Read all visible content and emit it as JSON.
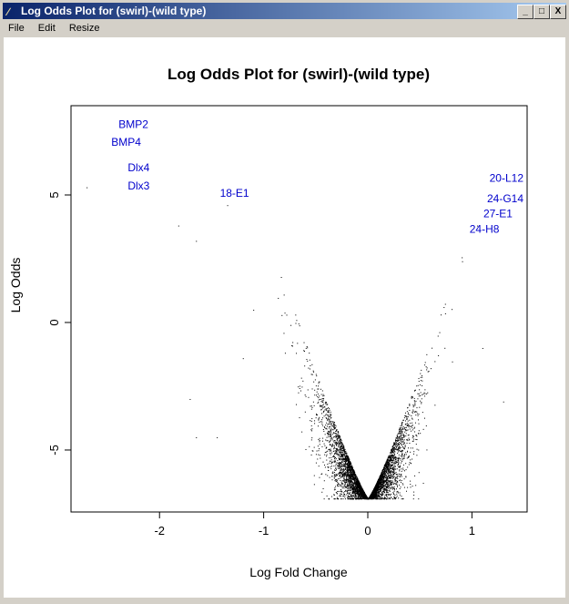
{
  "window": {
    "title": "Log Odds Plot for (swirl)-(wild type)",
    "icon": "feather-icon",
    "controls": [
      "_",
      "□",
      "X"
    ]
  },
  "menu": [
    "File",
    "Edit",
    "Resize"
  ],
  "chart_data": {
    "type": "scatter",
    "title": "Log Odds Plot for (swirl)-(wild type)",
    "xlabel": "Log Fold Change",
    "ylabel": "Log Odds",
    "xlim": [
      -2.85,
      1.53
    ],
    "ylim": [
      -7.43,
      8.5
    ],
    "xticks": [
      -2,
      -1,
      0,
      1
    ],
    "yticks": [
      -5,
      0,
      5
    ],
    "grid": false,
    "point_color": "#000000",
    "label_color": "#0000cc",
    "labeled_points": [
      {
        "label": "BMP2",
        "x": -2.25,
        "y": 7.8
      },
      {
        "label": "BMP4",
        "x": -2.32,
        "y": 7.6
      },
      {
        "label": "Dlx4",
        "x": -2.2,
        "y": 7.6
      },
      {
        "label": "Dlx3",
        "x": -2.2,
        "y": 7.4
      },
      {
        "label": "18-E1",
        "x": -1.28,
        "y": 5.1
      },
      {
        "label": "20-L12",
        "x": 1.27,
        "y": 5.7
      },
      {
        "label": "24-H8",
        "x": 1.12,
        "y": 5.2
      },
      {
        "label": "27-E1",
        "x": 1.25,
        "y": 5.3
      },
      {
        "label": "24-G14",
        "x": 1.38,
        "y": 5.4
      }
    ],
    "outlier_points": [
      [
        -2.7,
        5.3
      ],
      [
        -1.82,
        3.8
      ],
      [
        -1.65,
        3.2
      ],
      [
        -1.71,
        -3
      ],
      [
        -1.45,
        -4.5
      ],
      [
        -1.2,
        -1.4
      ],
      [
        1.1,
        -1
      ],
      [
        1.3,
        -3.1
      ],
      [
        -1.65,
        -4.5
      ],
      [
        -1.1,
        0.5
      ],
      [
        -1.35,
        4.6
      ],
      [
        1.05,
        3.8
      ]
    ]
  }
}
